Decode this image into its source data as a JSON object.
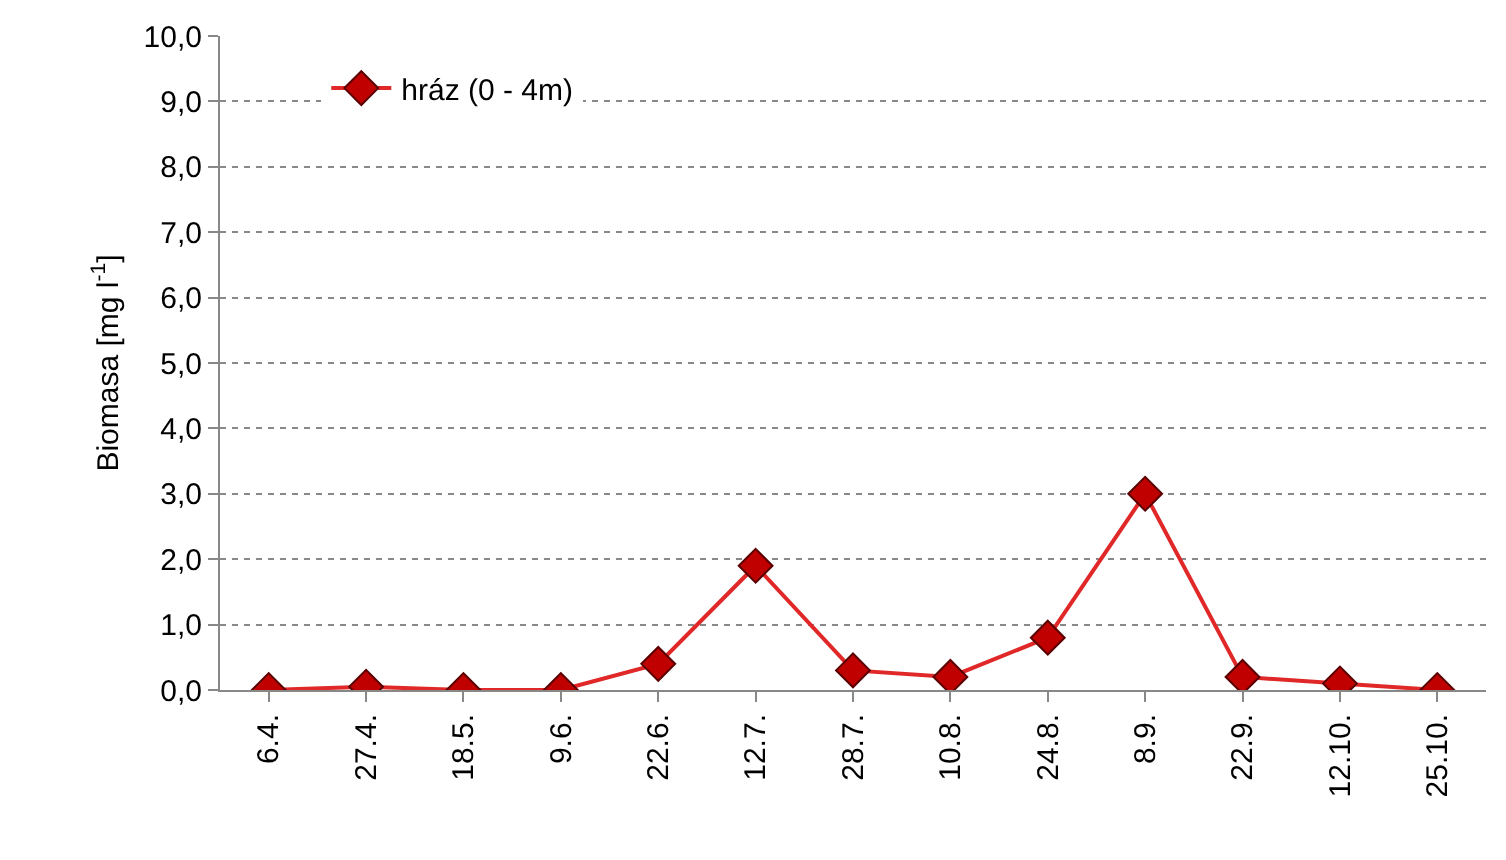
{
  "chart_data": {
    "type": "line",
    "ylabel": "Biomasa [mg l$^{-1}$]",
    "categories": [
      "6.4.",
      "27.4.",
      "18.5.",
      "9.6.",
      "22.6.",
      "12.7.",
      "28.7.",
      "10.8.",
      "24.8.",
      "8.9.",
      "22.9.",
      "12.10.",
      "25.10."
    ],
    "series": [
      {
        "name": "hráz (0 - 4m)",
        "color": "#e02828",
        "values": [
          0,
          0.05,
          0,
          0,
          0.4,
          1.9,
          0.3,
          0.2,
          0.8,
          3.0,
          0.2,
          0.1,
          0
        ]
      }
    ],
    "ylim": [
      0,
      10
    ],
    "yticks": [
      {
        "value": 0,
        "label": "0,0"
      },
      {
        "value": 1,
        "label": "1,0"
      },
      {
        "value": 2,
        "label": "2,0"
      },
      {
        "value": 3,
        "label": "3,0"
      },
      {
        "value": 4,
        "label": "4,0"
      },
      {
        "value": 5,
        "label": "5,0"
      },
      {
        "value": 6,
        "label": "6,0"
      },
      {
        "value": 7,
        "label": "7,0"
      },
      {
        "value": 8,
        "label": "8,0"
      },
      {
        "value": 9,
        "label": "9,0"
      },
      {
        "value": 10,
        "label": "10,0"
      }
    ],
    "grid": "y",
    "legend": "top left",
    "marker": "diamond",
    "line_style": "solid"
  }
}
